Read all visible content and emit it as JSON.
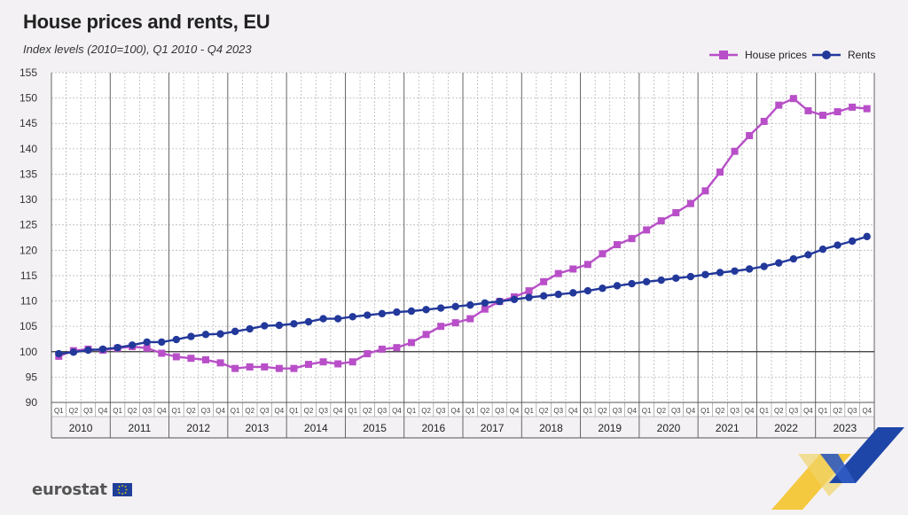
{
  "header": {
    "title": "House prices and rents, EU",
    "subtitle": "Index levels (2010=100), Q1 2010 - Q4 2023"
  },
  "footer": {
    "logo_text": "eurostat"
  },
  "colors": {
    "house_prices": "#b84fc8",
    "rents": "#22389a",
    "grid": "#b8b8b8",
    "baseline": "#333333"
  },
  "chart_data": {
    "type": "line",
    "title": "House prices and rents, EU",
    "subtitle": "Index levels (2010=100), Q1 2010 - Q4 2023",
    "xlabel": "",
    "ylabel": "",
    "ylim": [
      90,
      155
    ],
    "yticks": [
      90,
      95,
      100,
      105,
      110,
      115,
      120,
      125,
      130,
      135,
      140,
      145,
      150,
      155
    ],
    "baseline": 100,
    "years": [
      "2010",
      "2011",
      "2012",
      "2013",
      "2014",
      "2015",
      "2016",
      "2017",
      "2018",
      "2019",
      "2020",
      "2021",
      "2022",
      "2023"
    ],
    "quarters": [
      "Q1",
      "Q2",
      "Q3",
      "Q4"
    ],
    "legend_position": "top-right",
    "grid": true,
    "series": [
      {
        "name": "House prices",
        "marker": "square",
        "values": [
          99.1,
          100.2,
          100.5,
          100.3,
          100.7,
          101.0,
          100.7,
          99.7,
          99.0,
          98.7,
          98.4,
          97.8,
          96.7,
          97.0,
          97.0,
          96.7,
          96.7,
          97.5,
          98.0,
          97.6,
          98.0,
          99.6,
          100.5,
          100.8,
          101.8,
          103.4,
          105.0,
          105.7,
          106.5,
          108.4,
          109.9,
          110.8,
          112.0,
          113.8,
          115.4,
          116.3,
          117.2,
          119.3,
          121.1,
          122.3,
          124.0,
          125.8,
          127.4,
          129.2,
          131.7,
          135.4,
          139.5,
          142.6,
          145.4,
          148.6,
          149.9,
          147.5,
          146.6,
          147.3,
          148.2,
          147.9
        ]
      },
      {
        "name": "Rents",
        "marker": "circle",
        "values": [
          99.6,
          99.9,
          100.3,
          100.5,
          100.8,
          101.3,
          101.9,
          101.9,
          102.4,
          103.0,
          103.4,
          103.5,
          104.0,
          104.5,
          105.1,
          105.2,
          105.5,
          105.9,
          106.5,
          106.5,
          106.9,
          107.2,
          107.5,
          107.8,
          108.0,
          108.3,
          108.6,
          108.9,
          109.2,
          109.6,
          109.9,
          110.3,
          110.7,
          111.0,
          111.3,
          111.6,
          112.0,
          112.5,
          113.0,
          113.4,
          113.8,
          114.1,
          114.5,
          114.8,
          115.2,
          115.6,
          115.9,
          116.3,
          116.8,
          117.5,
          118.3,
          119.1,
          120.2,
          121.0,
          121.8,
          122.7
        ]
      }
    ]
  }
}
